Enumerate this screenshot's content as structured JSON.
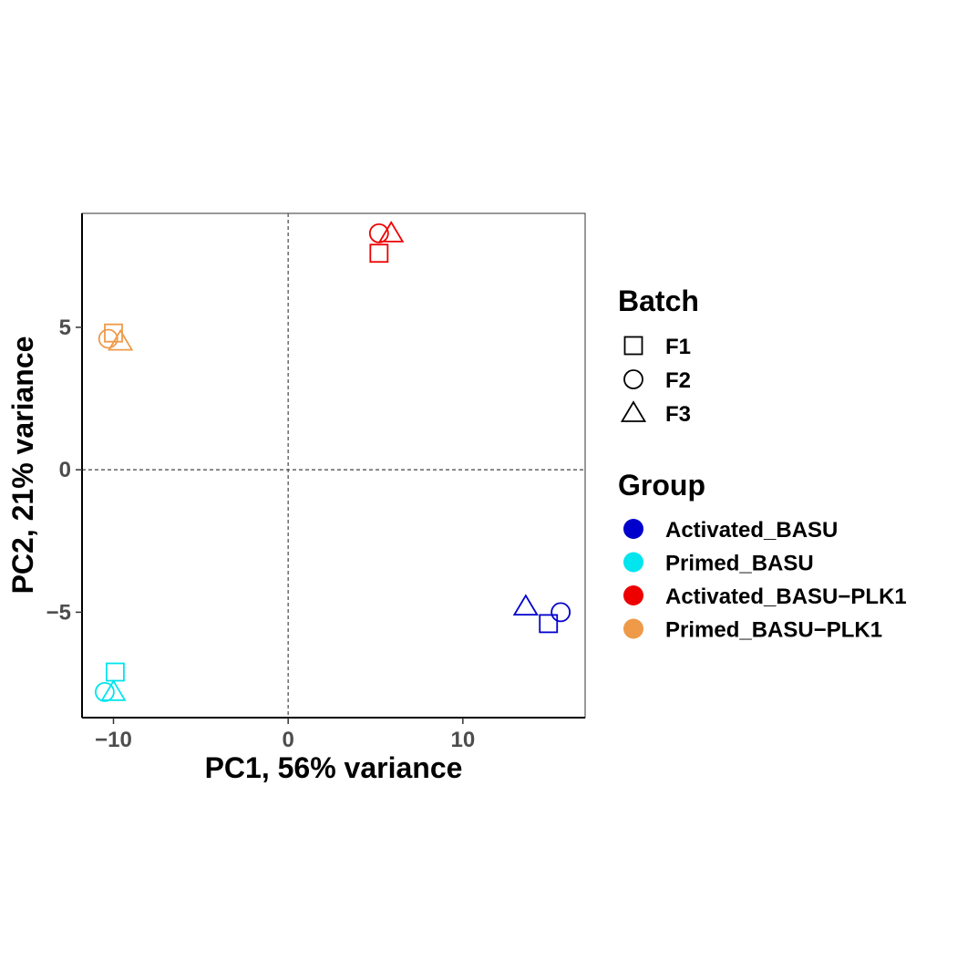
{
  "chart_data": {
    "type": "scatter",
    "xlabel": "PC1, 56% variance",
    "ylabel": "PC2, 21% variance",
    "xlim": [
      -11.8,
      17.0
    ],
    "ylim": [
      -8.7,
      9.0
    ],
    "xticks": [
      {
        "value": -10,
        "label": "−10"
      },
      {
        "value": 0,
        "label": "0"
      },
      {
        "value": 10,
        "label": "10"
      }
    ],
    "yticks": [
      {
        "value": -5,
        "label": "−5"
      },
      {
        "value": 0,
        "label": "0"
      },
      {
        "value": 5,
        "label": "5"
      }
    ],
    "reference_lines": {
      "x": 0,
      "y": 0,
      "style": "dashed"
    },
    "grid": false,
    "legend": {
      "placement": "right",
      "batch": {
        "title": "Batch",
        "items": [
          {
            "label": "F1",
            "shape": "square"
          },
          {
            "label": "F2",
            "shape": "circle"
          },
          {
            "label": "F3",
            "shape": "triangle"
          }
        ]
      },
      "group": {
        "title": "Group",
        "items": [
          {
            "label": "Activated_BASU",
            "color": "#0000CD"
          },
          {
            "label": "Primed_BASU",
            "color": "#00E5EE"
          },
          {
            "label": "Activated_BASU−PLK1",
            "color": "#EE0000"
          },
          {
            "label": "Primed_BASU−PLK1",
            "color": "#EE9A49"
          }
        ]
      }
    },
    "points": [
      {
        "group": "Activated_BASU−PLK1",
        "batch": "F1",
        "x": 5.2,
        "y": 7.6
      },
      {
        "group": "Activated_BASU−PLK1",
        "batch": "F2",
        "x": 5.2,
        "y": 8.3
      },
      {
        "group": "Activated_BASU−PLK1",
        "batch": "F3",
        "x": 5.9,
        "y": 8.3
      },
      {
        "group": "Primed_BASU−PLK1",
        "batch": "F1",
        "x": -10.0,
        "y": 4.8
      },
      {
        "group": "Primed_BASU−PLK1",
        "batch": "F2",
        "x": -10.3,
        "y": 4.6
      },
      {
        "group": "Primed_BASU−PLK1",
        "batch": "F3",
        "x": -9.6,
        "y": 4.5
      },
      {
        "group": "Activated_BASU",
        "batch": "F1",
        "x": 14.9,
        "y": -5.4
      },
      {
        "group": "Activated_BASU",
        "batch": "F2",
        "x": 15.6,
        "y": -5.0
      },
      {
        "group": "Activated_BASU",
        "batch": "F3",
        "x": 13.6,
        "y": -4.8
      },
      {
        "group": "Primed_BASU",
        "batch": "F1",
        "x": -9.9,
        "y": -7.1
      },
      {
        "group": "Primed_BASU",
        "batch": "F2",
        "x": -10.5,
        "y": -7.8
      },
      {
        "group": "Primed_BASU",
        "batch": "F3",
        "x": -10.0,
        "y": -7.8
      }
    ]
  }
}
